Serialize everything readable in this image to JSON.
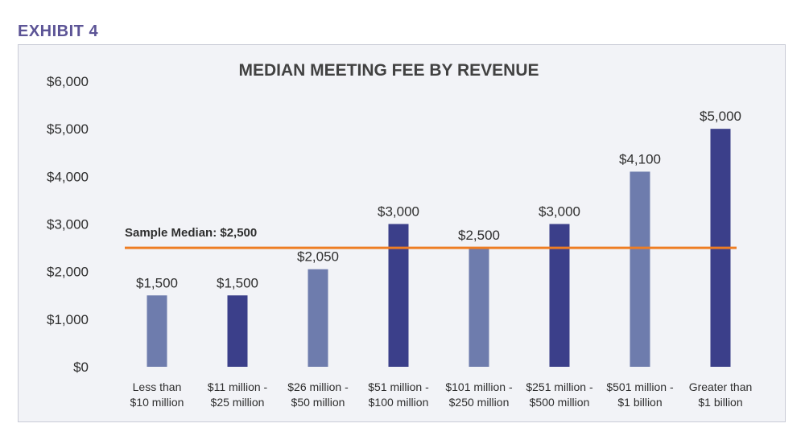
{
  "exhibit_label": "EXHIBIT 4",
  "chart_data": {
    "type": "bar",
    "title": "MEDIAN MEETING FEE BY REVENUE",
    "xlabel": "",
    "ylabel": "",
    "ylim": [
      0,
      6000
    ],
    "y_ticks": [
      "$0",
      "$1,000",
      "$2,000",
      "$3,000",
      "$4,000",
      "$5,000",
      "$6,000"
    ],
    "grid": false,
    "categories": [
      [
        "Less than",
        "$10 million"
      ],
      [
        "$11 million -",
        "$25 million"
      ],
      [
        "$26 million -",
        "$50 million"
      ],
      [
        "$51 million -",
        "$100 million"
      ],
      [
        "$101 million -",
        "$250 million"
      ],
      [
        "$251 million -",
        "$500 million"
      ],
      [
        "$501 million -",
        "$1 billion"
      ],
      [
        "Greater than",
        "$1 billion"
      ]
    ],
    "values": [
      1500,
      1500,
      2050,
      3000,
      2500,
      3000,
      4100,
      5000
    ],
    "data_labels": [
      "$1,500",
      "$1,500",
      "$2,050",
      "$3,000",
      "$2,500",
      "$3,000",
      "$4,100",
      "$5,000"
    ],
    "bar_colors": [
      "#6e7cad",
      "#3b3f8a",
      "#6e7cad",
      "#3b3f8a",
      "#6e7cad",
      "#3b3f8a",
      "#6e7cad",
      "#3b3f8a"
    ],
    "reference_line": {
      "value": 2500,
      "label": "Sample Median: $2,500",
      "color": "#ee7d23"
    }
  }
}
